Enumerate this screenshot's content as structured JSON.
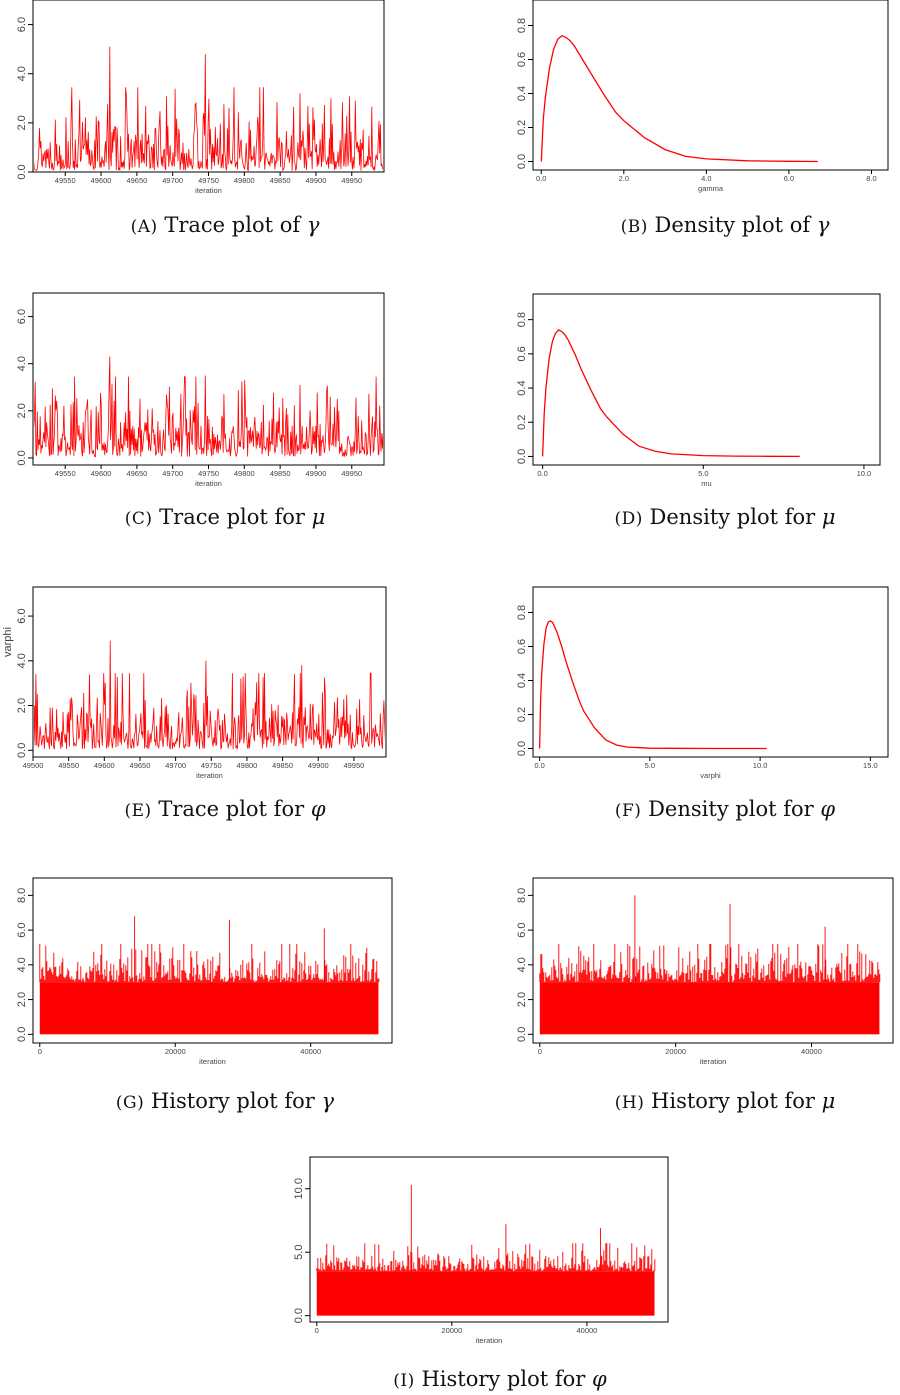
{
  "figure": {
    "colors": {
      "series": "#ff0000",
      "axis": "#000000",
      "text": "#444444"
    }
  },
  "chart_data": [
    {
      "id": "A",
      "type": "line",
      "kind": "trace",
      "xlabel": "iteration",
      "ylabel": "",
      "xlim": [
        49505,
        49995
      ],
      "ylim": [
        0,
        7
      ],
      "xticks": [
        49550,
        49600,
        49650,
        49700,
        49750,
        49800,
        49850,
        49900,
        49950
      ],
      "xtick_labels": [
        "49550",
        "49600",
        "49650",
        "49700",
        "49750",
        "49800",
        "49850",
        "49900",
        "49950"
      ],
      "yticks": [
        0,
        2,
        4,
        6
      ],
      "ytick_labels": [
        "0.0",
        "2.0",
        "4.0",
        "6.0"
      ],
      "summary": {
        "n": 490,
        "x_start": 49505,
        "x_end": 49995,
        "typical_range": [
          0.1,
          2.5
        ],
        "peaks": [
          5.1,
          4.8,
          3.2
        ]
      },
      "caption": {
        "label": "(A)",
        "text": "Trace plot of",
        "symbol": "γ"
      }
    },
    {
      "id": "B",
      "type": "line",
      "kind": "density",
      "xlabel": "gamma",
      "ylabel": "",
      "xlim": [
        -0.2,
        8.4
      ],
      "ylim": [
        -0.05,
        0.95
      ],
      "xticks": [
        0,
        2,
        4,
        6,
        8
      ],
      "xtick_labels": [
        "0.0",
        "2.0",
        "4.0",
        "6.0",
        "8.0"
      ],
      "yticks": [
        0,
        0.2,
        0.4,
        0.6,
        0.8
      ],
      "ytick_labels": [
        "0.0",
        "0.2",
        "0.4",
        "0.6",
        "0.8"
      ],
      "x": [
        0.0,
        0.05,
        0.1,
        0.2,
        0.3,
        0.4,
        0.5,
        0.6,
        0.7,
        0.8,
        1.0,
        1.2,
        1.5,
        1.8,
        2.0,
        2.5,
        3.0,
        3.5,
        4.0,
        5.0,
        6.0,
        6.7
      ],
      "y": [
        0.0,
        0.25,
        0.38,
        0.55,
        0.66,
        0.72,
        0.74,
        0.73,
        0.71,
        0.68,
        0.6,
        0.52,
        0.4,
        0.29,
        0.24,
        0.14,
        0.07,
        0.03,
        0.015,
        0.004,
        0.001,
        0.0
      ],
      "caption": {
        "label": "(B)",
        "text": "Density plot of",
        "symbol": "γ"
      }
    },
    {
      "id": "C",
      "type": "line",
      "kind": "trace",
      "xlabel": "iteration",
      "ylabel": "",
      "xlim": [
        49505,
        49995
      ],
      "ylim": [
        -0.3,
        7
      ],
      "xticks": [
        49550,
        49600,
        49650,
        49700,
        49750,
        49800,
        49850,
        49900,
        49950
      ],
      "xtick_labels": [
        "49550",
        "49600",
        "49650",
        "49700",
        "49750",
        "49800",
        "49850",
        "49900",
        "49950"
      ],
      "yticks": [
        0,
        2,
        4,
        6
      ],
      "ytick_labels": [
        "0.0",
        "2.0",
        "4.0",
        "6.0"
      ],
      "summary": {
        "n": 490,
        "x_start": 49505,
        "x_end": 49995,
        "typical_range": [
          0.1,
          2.5
        ],
        "peaks": [
          4.3,
          3.5,
          3.1
        ]
      },
      "caption": {
        "label": "(C)",
        "text": "Trace plot for",
        "symbol": "μ"
      }
    },
    {
      "id": "D",
      "type": "line",
      "kind": "density",
      "xlabel": "mu",
      "ylabel": "",
      "xlim": [
        -0.3,
        10.5
      ],
      "ylim": [
        -0.05,
        0.95
      ],
      "xticks": [
        0,
        5,
        10
      ],
      "xtick_labels": [
        "0.0",
        "5.0",
        "10.0"
      ],
      "yticks": [
        0,
        0.2,
        0.4,
        0.6,
        0.8
      ],
      "ytick_labels": [
        "0.0",
        "0.2",
        "0.4",
        "0.6",
        "0.8"
      ],
      "x": [
        0.0,
        0.05,
        0.1,
        0.2,
        0.3,
        0.4,
        0.5,
        0.6,
        0.7,
        0.8,
        1.0,
        1.2,
        1.5,
        1.8,
        2.0,
        2.5,
        3.0,
        3.5,
        4.0,
        5.0,
        6.0,
        7.0,
        8.0
      ],
      "y": [
        0.0,
        0.25,
        0.4,
        0.57,
        0.67,
        0.72,
        0.74,
        0.73,
        0.71,
        0.68,
        0.6,
        0.51,
        0.39,
        0.28,
        0.23,
        0.13,
        0.06,
        0.03,
        0.015,
        0.005,
        0.002,
        0.001,
        0.0
      ],
      "caption": {
        "label": "(D)",
        "text": "Density plot for",
        "symbol": "μ"
      }
    },
    {
      "id": "E",
      "type": "line",
      "kind": "trace",
      "xlabel": "iteration",
      "ylabel": "varphi",
      "xlim": [
        49500,
        49995
      ],
      "ylim": [
        -0.3,
        7.3
      ],
      "xticks": [
        49500,
        49550,
        49600,
        49650,
        49700,
        49750,
        49800,
        49850,
        49900,
        49950
      ],
      "xtick_labels": [
        "49500",
        "49550",
        "49600",
        "49650",
        "49700",
        "49750",
        "49800",
        "49850",
        "49900",
        "49950"
      ],
      "yticks": [
        0,
        2,
        4,
        6
      ],
      "ytick_labels": [
        "0.0",
        "2.0",
        "4.0",
        "6.0"
      ],
      "summary": {
        "n": 495,
        "x_start": 49500,
        "x_end": 49995,
        "typical_range": [
          0.1,
          2.5
        ],
        "peaks": [
          4.9,
          4.0,
          3.8
        ]
      },
      "caption": {
        "label": "(E)",
        "text": "Trace plot for",
        "symbol": "φ"
      }
    },
    {
      "id": "F",
      "type": "line",
      "kind": "density",
      "xlabel": "varphi",
      "ylabel": "",
      "xlim": [
        -0.3,
        15.8
      ],
      "ylim": [
        -0.05,
        0.95
      ],
      "xticks": [
        0,
        5,
        10,
        15
      ],
      "xtick_labels": [
        "0.0",
        "5.0",
        "10.0",
        "15.0"
      ],
      "yticks": [
        0,
        0.2,
        0.4,
        0.6,
        0.8
      ],
      "ytick_labels": [
        "0.0",
        "0.2",
        "0.4",
        "0.6",
        "0.8"
      ],
      "x": [
        0.0,
        0.05,
        0.1,
        0.2,
        0.3,
        0.4,
        0.5,
        0.6,
        0.7,
        0.8,
        1.0,
        1.2,
        1.5,
        1.8,
        2.0,
        2.5,
        3.0,
        3.5,
        4.0,
        5.0,
        6.0,
        8.0,
        10.3
      ],
      "y": [
        0.0,
        0.3,
        0.45,
        0.62,
        0.71,
        0.745,
        0.75,
        0.74,
        0.71,
        0.68,
        0.6,
        0.51,
        0.39,
        0.28,
        0.22,
        0.12,
        0.05,
        0.02,
        0.008,
        0.002,
        0.001,
        0.0,
        0.0
      ],
      "caption": {
        "label": "(F)",
        "text": "Density plot for",
        "symbol": "φ"
      }
    },
    {
      "id": "G",
      "type": "line",
      "kind": "history",
      "xlabel": "iteration",
      "ylabel": "",
      "xlim": [
        -1000,
        52000
      ],
      "ylim": [
        -0.5,
        9
      ],
      "xticks": [
        0,
        20000,
        40000
      ],
      "xtick_labels": [
        "0",
        "20000",
        "40000"
      ],
      "yticks": [
        0,
        2,
        4,
        6,
        8
      ],
      "ytick_labels": [
        "0.0",
        "2.0",
        "4.0",
        "6.0",
        "8.0"
      ],
      "summary": {
        "n": 50000,
        "x_start": 1,
        "x_end": 50000,
        "band_top": 3.0,
        "peaks": [
          6.8,
          6.6,
          6.1
        ]
      },
      "caption": {
        "label": "(G)",
        "text": "History plot for",
        "symbol": "γ"
      }
    },
    {
      "id": "H",
      "type": "line",
      "kind": "history",
      "xlabel": "iteration",
      "ylabel": "",
      "xlim": [
        -1000,
        52000
      ],
      "ylim": [
        -0.5,
        9
      ],
      "xticks": [
        0,
        20000,
        40000
      ],
      "xtick_labels": [
        "0",
        "20000",
        "40000"
      ],
      "yticks": [
        0,
        2,
        4,
        6,
        8
      ],
      "ytick_labels": [
        "0.0",
        "2.0",
        "4.0",
        "6.0",
        "8.0"
      ],
      "summary": {
        "n": 50000,
        "x_start": 1,
        "x_end": 50000,
        "band_top": 3.0,
        "peaks": [
          8.0,
          7.5,
          6.2
        ]
      },
      "caption": {
        "label": "(H)",
        "text": "History plot for",
        "symbol": "μ"
      }
    },
    {
      "id": "I",
      "type": "line",
      "kind": "history",
      "xlabel": "iteration",
      "ylabel": "",
      "xlim": [
        -1000,
        52000
      ],
      "ylim": [
        -0.5,
        12.5
      ],
      "xticks": [
        0,
        20000,
        40000
      ],
      "xtick_labels": [
        "0",
        "20000",
        "40000"
      ],
      "yticks": [
        0,
        5,
        10
      ],
      "ytick_labels": [
        "0.0",
        "5.0",
        "10.0"
      ],
      "summary": {
        "n": 50000,
        "x_start": 1,
        "x_end": 50000,
        "band_top": 3.5,
        "peaks": [
          10.3,
          7.2,
          6.9
        ]
      },
      "caption": {
        "label": "(I)",
        "text": "History plot for",
        "symbol": "φ"
      }
    }
  ]
}
